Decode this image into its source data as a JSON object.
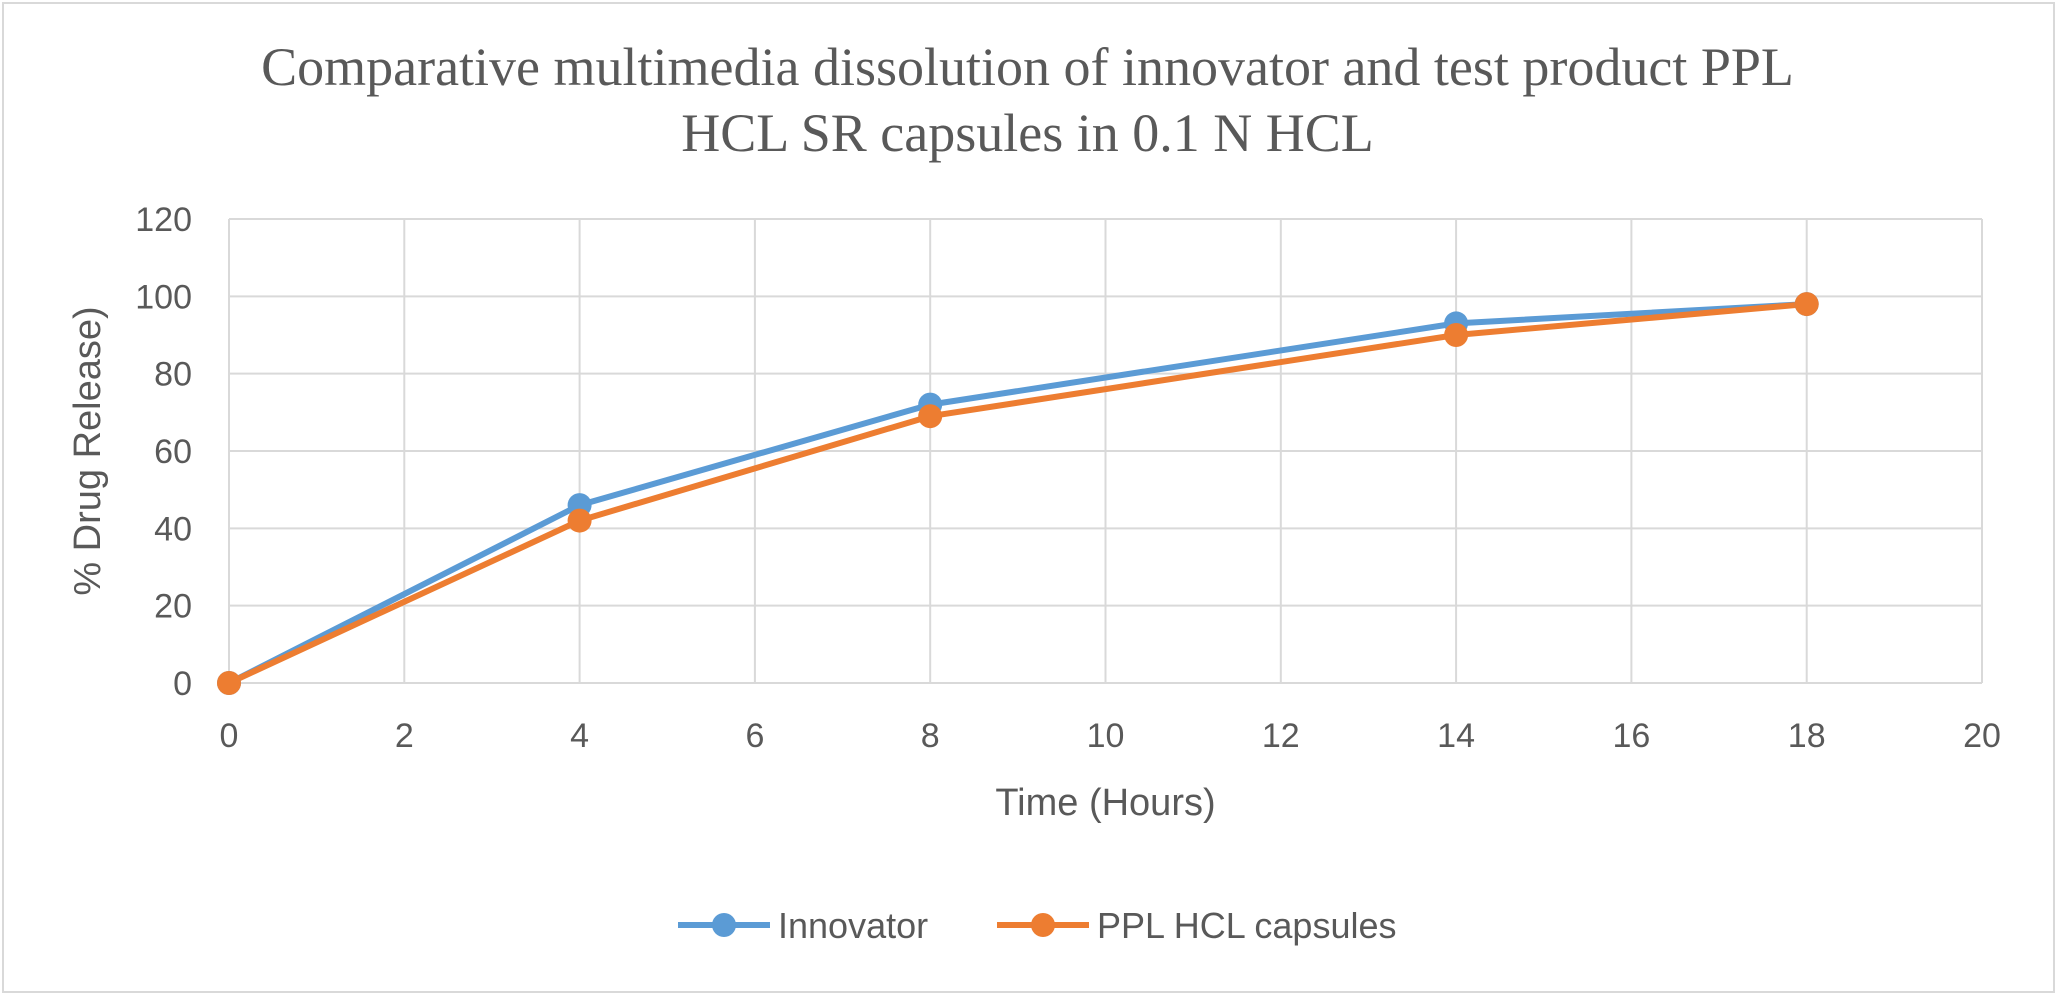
{
  "chart_data": {
    "type": "scatter",
    "title_lines": [
      "Comparative multimedia dissolution of innovator and test product PPL",
      "HCL SR capsules in 0.1 N HCL"
    ],
    "xlabel": "Time (Hours)",
    "ylabel": "% Drug Release)",
    "xlim": [
      0,
      20
    ],
    "ylim": [
      0,
      120
    ],
    "xticks": [
      "0",
      "2",
      "4",
      "6",
      "8",
      "10",
      "12",
      "14",
      "16",
      "18",
      "20"
    ],
    "yticks": [
      "0",
      "20",
      "40",
      "60",
      "80",
      "100",
      "120"
    ],
    "grid": true,
    "legend_position": "bottom",
    "series": [
      {
        "name": "Innovator",
        "color": "#5b9bd5",
        "x": [
          0,
          4,
          8,
          14,
          18
        ],
        "y": [
          0,
          46,
          72,
          93,
          98
        ]
      },
      {
        "name": "PPL HCL capsules",
        "color": "#ed7d31",
        "x": [
          0,
          4,
          8,
          14,
          18
        ],
        "y": [
          0,
          42,
          69,
          90,
          98
        ]
      }
    ]
  }
}
